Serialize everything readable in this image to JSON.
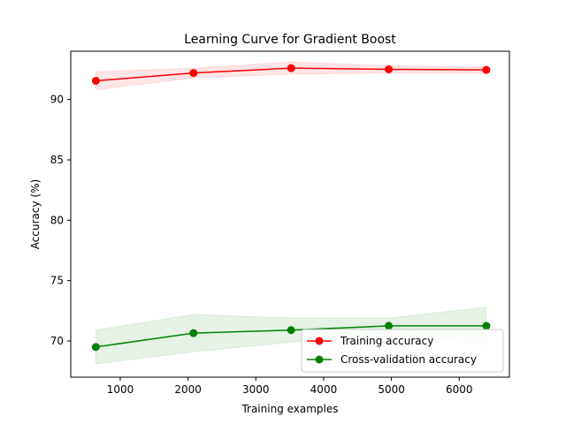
{
  "chart_data": {
    "type": "line",
    "title": "Learning Curve for Gradient Boost",
    "xlabel": "Training examples",
    "ylabel": "Accuracy (%)",
    "xlim": [
      270,
      6740
    ],
    "ylim": [
      67.0,
      94.0
    ],
    "xticks": [
      1000,
      2000,
      3000,
      4000,
      5000,
      6000
    ],
    "yticks": [
      70,
      75,
      80,
      85,
      90
    ],
    "grid": false,
    "legend_position": "lower-right",
    "series": [
      {
        "name": "Training accuracy",
        "color": "#ff0000",
        "band_color": "#ff0000",
        "x": [
          640,
          2080,
          3520,
          4960,
          6400
        ],
        "y": [
          91.55,
          92.2,
          92.6,
          92.5,
          92.45
        ],
        "y_lower": [
          90.8,
          91.8,
          92.1,
          92.2,
          92.2
        ],
        "y_upper": [
          92.3,
          92.6,
          93.1,
          92.8,
          92.7
        ]
      },
      {
        "name": "Cross-validation accuracy",
        "color": "#008000",
        "band_color": "#008000",
        "x": [
          640,
          2080,
          3520,
          4960,
          6400
        ],
        "y": [
          69.5,
          70.65,
          70.9,
          71.25,
          71.25
        ],
        "y_lower": [
          68.1,
          69.1,
          69.9,
          70.6,
          69.7
        ],
        "y_upper": [
          70.9,
          72.2,
          71.9,
          71.9,
          72.8
        ]
      }
    ]
  }
}
